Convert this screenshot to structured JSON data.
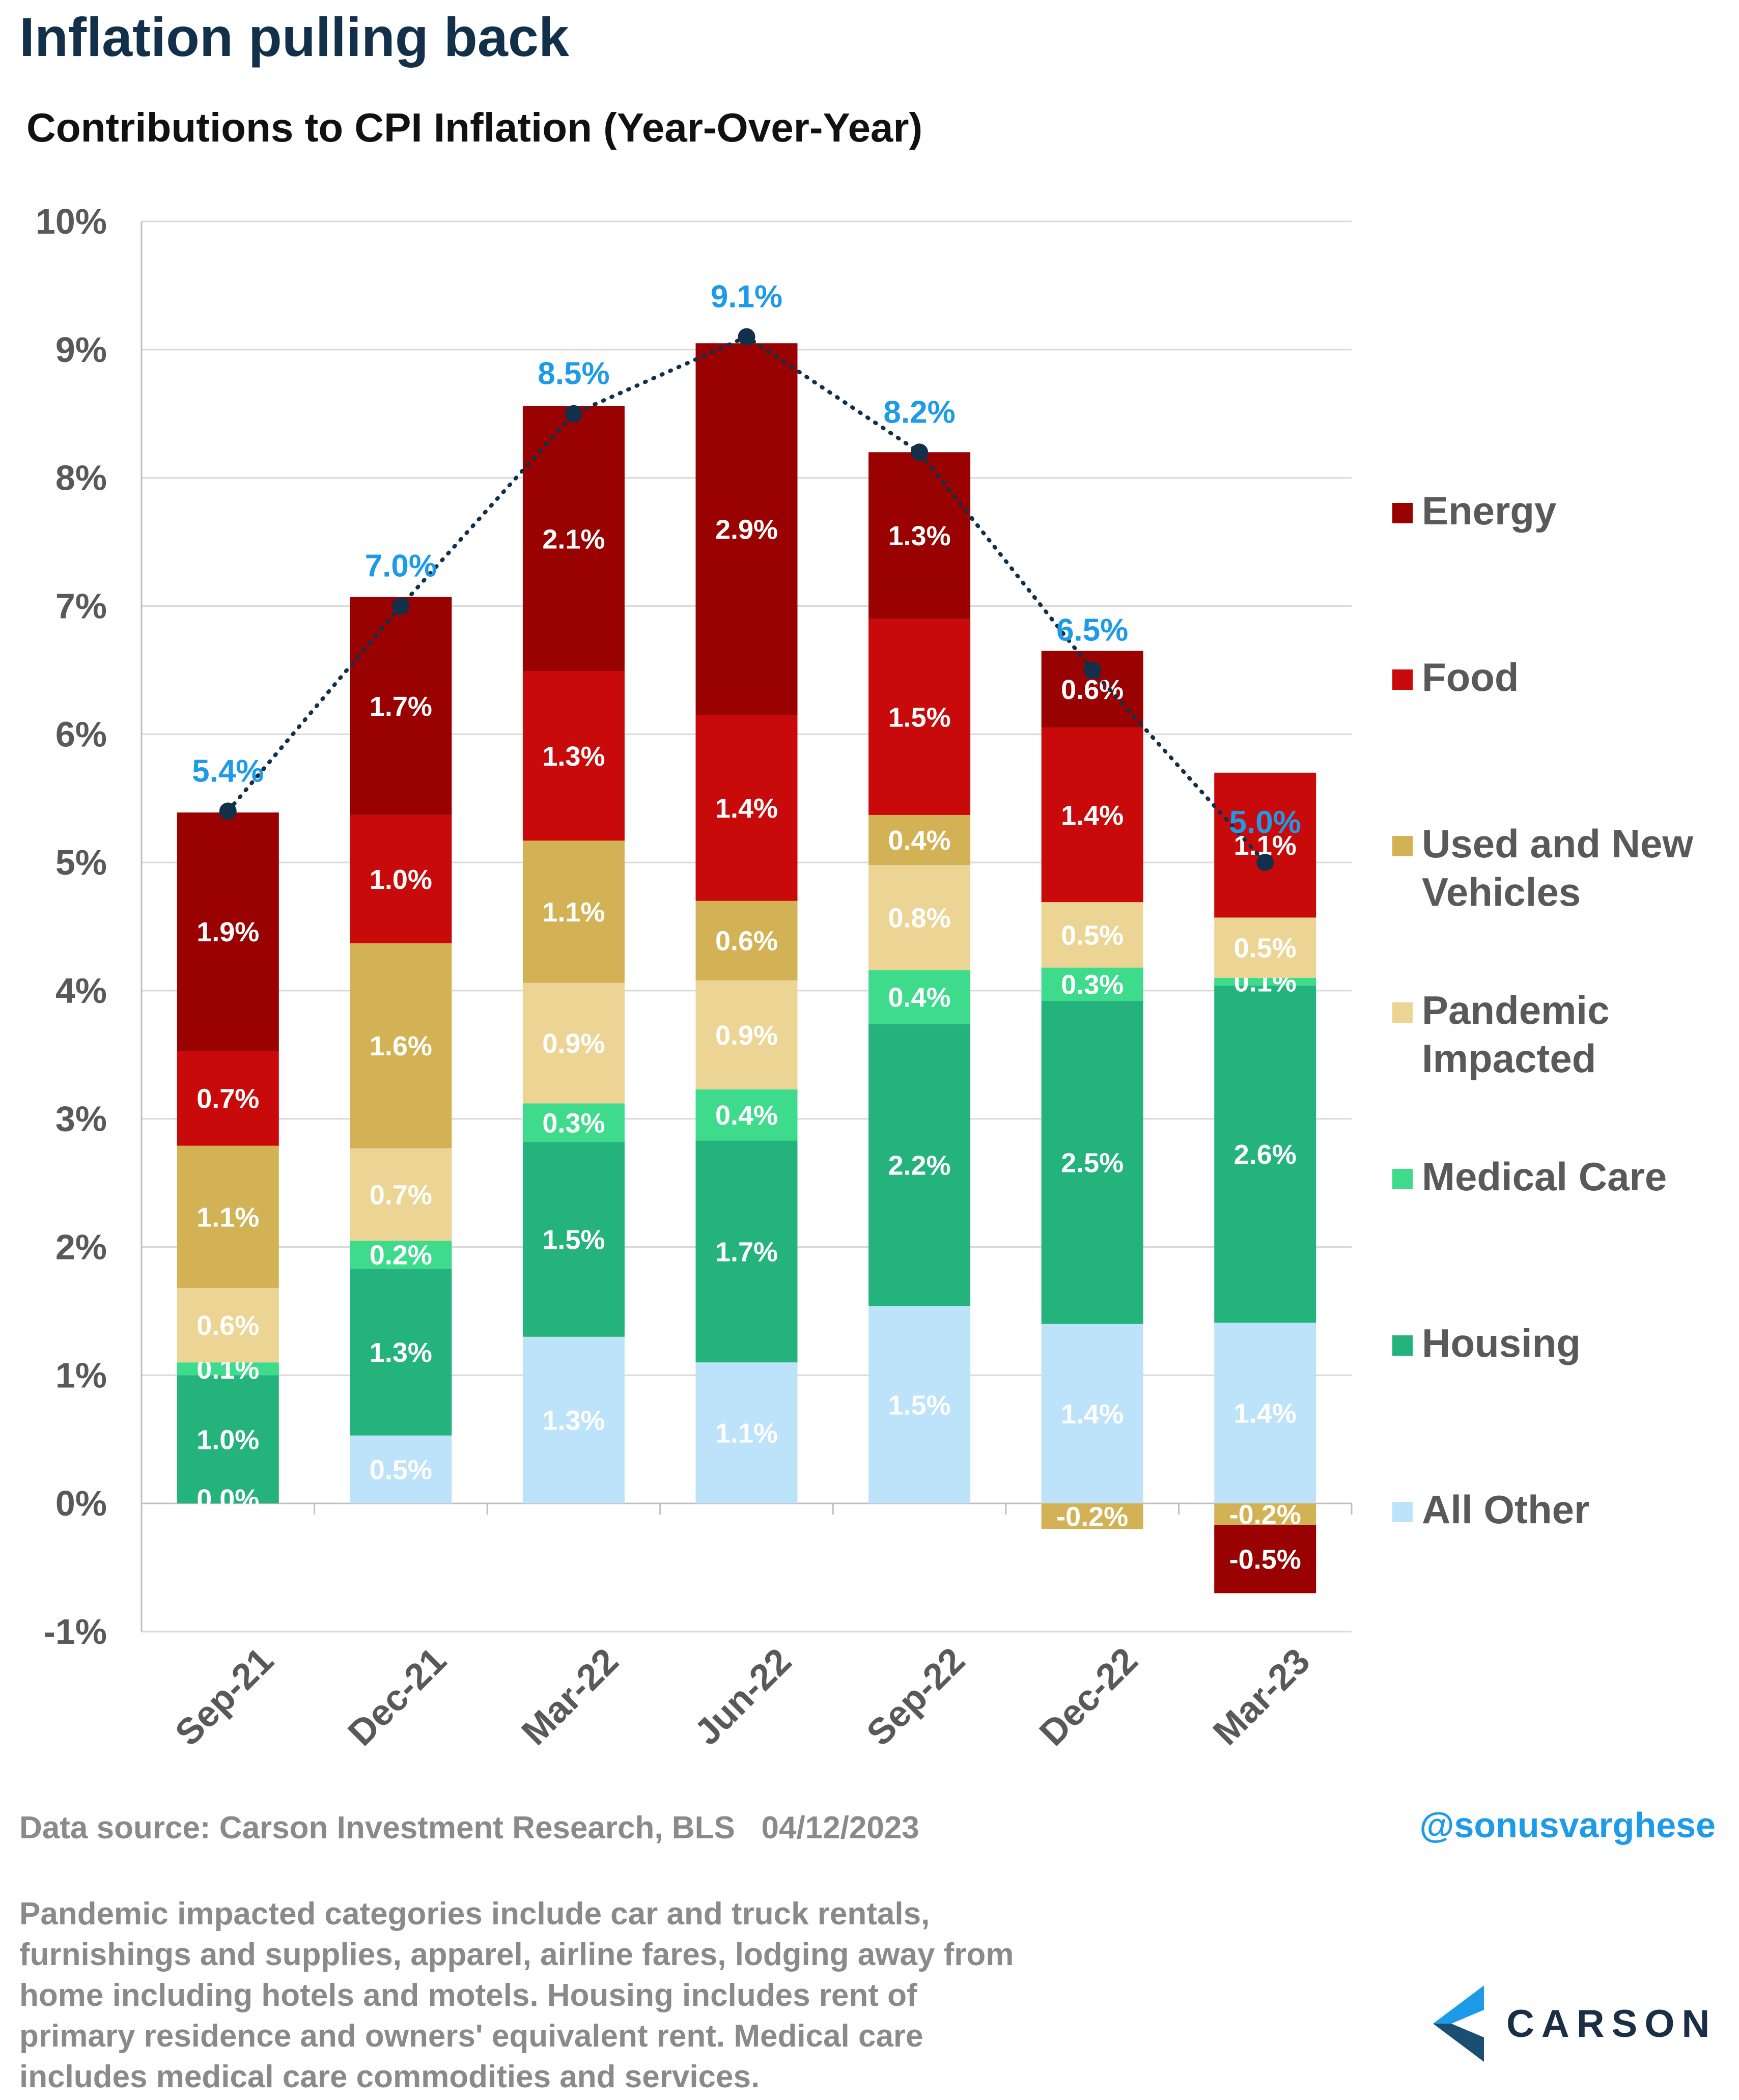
{
  "header": {
    "title": "Inflation pulling back",
    "subtitle": "Contributions to CPI Inflation (Year-Over-Year)"
  },
  "chart_data": {
    "type": "bar",
    "stacked": true,
    "categories": [
      "Sep-21",
      "Dec-21",
      "Mar-22",
      "Jun-22",
      "Sep-22",
      "Dec-22",
      "Mar-23"
    ],
    "ylim": [
      -1,
      10
    ],
    "yticks": [
      -1,
      0,
      1,
      2,
      3,
      4,
      5,
      6,
      7,
      8,
      9,
      10
    ],
    "ytick_labels": [
      "-1%",
      "0%",
      "1%",
      "2%",
      "3%",
      "4%",
      "5%",
      "6%",
      "7%",
      "8%",
      "9%",
      "10%"
    ],
    "grid": true,
    "legend_position": "right",
    "series": [
      {
        "name": "All Other",
        "color": "#bde3fb",
        "values": [
          0.0,
          0.53,
          1.3,
          1.1,
          1.54,
          1.4,
          1.41
        ],
        "labels": [
          "",
          "0.5%",
          "1.3%",
          "1.1%",
          "1.5%",
          "1.4%",
          "1.4%"
        ]
      },
      {
        "name": "Housing",
        "color": "#24b37c",
        "values": [
          1.0,
          1.3,
          1.52,
          1.73,
          2.2,
          2.52,
          2.63
        ],
        "labels": [
          "1.0%",
          "1.3%",
          "1.5%",
          "1.7%",
          "2.2%",
          "2.5%",
          "2.6%"
        ]
      },
      {
        "name": "Medical Care",
        "color": "#3ddb8b",
        "values": [
          0.1,
          0.22,
          0.3,
          0.4,
          0.42,
          0.26,
          0.06
        ],
        "labels": [
          "0.1%",
          "0.2%",
          "0.3%",
          "0.4%",
          "0.4%",
          "0.3%",
          "0.1%"
        ]
      },
      {
        "name": "Pandemic Impacted",
        "color": "#ecd594",
        "values": [
          0.58,
          0.72,
          0.94,
          0.85,
          0.82,
          0.51,
          0.47
        ],
        "labels": [
          "0.6%",
          "0.7%",
          "0.9%",
          "0.9%",
          "0.8%",
          "0.5%",
          "0.5%"
        ]
      },
      {
        "name": "Used and New Vehicles",
        "color": "#d3b255",
        "values": [
          1.11,
          1.6,
          1.11,
          0.62,
          0.39,
          -0.2,
          -0.17
        ],
        "labels": [
          "1.1%",
          "1.6%",
          "1.1%",
          "0.6%",
          "0.4%",
          "-0.2%",
          "-0.2%"
        ]
      },
      {
        "name": "Food",
        "color": "#c90a0b",
        "values": [
          0.74,
          1.0,
          1.32,
          1.45,
          1.53,
          1.36,
          1.13
        ],
        "labels": [
          "0.7%",
          "1.0%",
          "1.3%",
          "1.4%",
          "1.5%",
          "1.4%",
          "1.1%"
        ]
      },
      {
        "name": "Energy",
        "color": "#9a0101",
        "values": [
          1.86,
          1.7,
          2.07,
          2.9,
          1.3,
          0.6,
          -0.53
        ],
        "labels": [
          "1.9%",
          "1.7%",
          "2.1%",
          "2.9%",
          "1.3%",
          "0.6%",
          "-0.5%"
        ]
      }
    ],
    "extra_labels": [
      {
        "category": "Sep-21",
        "text": "0.0%",
        "value": 0.0
      }
    ],
    "total": {
      "type": "line",
      "style": "dotted",
      "values": [
        5.4,
        7.0,
        8.5,
        9.1,
        8.2,
        6.5,
        5.0
      ],
      "labels": [
        "5.4%",
        "7.0%",
        "8.5%",
        "9.1%",
        "8.2%",
        "6.5%",
        "5.0%"
      ]
    },
    "colors": {
      "axis_text": "#595959",
      "total_label": "#1e9be8",
      "total_line": "#13304a",
      "grid": "#d9d9d9"
    }
  },
  "footer": {
    "source": "Data source: Carson Investment Research, BLS   04/12/2023",
    "handle": "@sonusvarghese",
    "note": "Pandemic impacted categories include car and truck rentals, furnishings and supplies, apparel, airline fares, lodging away from home including hotels and motels. Housing includes rent of primary residence and owners' equivalent rent. Medical care includes medical care commodities and services."
  },
  "logo": {
    "word": "CARSON",
    "icon": "carson-chevron-icon"
  }
}
